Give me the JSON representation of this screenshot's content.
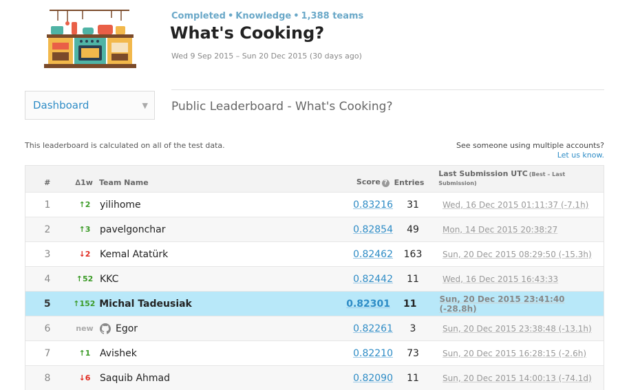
{
  "competition": {
    "status": "Completed",
    "category": "Knowledge",
    "teams": "1,388 teams",
    "title": "What's Cooking?",
    "dates": "Wed 9 Sep 2015 – Sun 20 Dec 2015 (30 days ago)"
  },
  "nav": {
    "dropdown_label": "Dashboard",
    "caret_icon": "caret-down-icon"
  },
  "leaderboard": {
    "title": "Public Leaderboard - What's Cooking?",
    "calc_note": "This leaderboard is calculated on all of the test data.",
    "multi_question": "See someone using multiple accounts?",
    "multi_link": "Let us know.",
    "columns": {
      "rank": "#",
      "delta": "∆1w",
      "team": "Team Name",
      "score": "Score",
      "entries": "Entries",
      "last_submission": "Last Submission UTC",
      "last_submission_note": "(Best – Last Submission)"
    },
    "colors": {
      "up": "#3a9a26",
      "down": "#e0281e",
      "highlight": "#b8e8f9",
      "link": "#2e8cc6"
    },
    "rows": [
      {
        "rank": "1",
        "delta": "↑2",
        "dir": "up",
        "team": "yilihome",
        "score": "0.83216",
        "entries": "31",
        "last": "Wed, 16 Dec 2015 01:11:37 (-7.1h)"
      },
      {
        "rank": "2",
        "delta": "↑3",
        "dir": "up",
        "team": "pavelgonchar",
        "score": "0.82854",
        "entries": "49",
        "last": "Mon, 14 Dec 2015 20:38:27"
      },
      {
        "rank": "3",
        "delta": "↓2",
        "dir": "down",
        "team": "Kemal Atatürk",
        "score": "0.82462",
        "entries": "163",
        "last": "Sun, 20 Dec 2015 08:29:50 (-15.3h)"
      },
      {
        "rank": "4",
        "delta": "↑52",
        "dir": "up",
        "team": "KKC",
        "score": "0.82442",
        "entries": "11",
        "last": "Wed, 16 Dec 2015 16:43:33"
      },
      {
        "rank": "5",
        "delta": "↑152",
        "dir": "up",
        "team": "Michal Tadeusiak",
        "score": "0.82301",
        "entries": "11",
        "last": "Sun, 20 Dec 2015 23:41:40 (-28.8h)"
      },
      {
        "rank": "6",
        "delta": "new",
        "dir": "new",
        "team": "Egor",
        "score": "0.82261",
        "entries": "3",
        "last": "Sun, 20 Dec 2015 23:38:48 (-13.1h)",
        "icon": "github-icon"
      },
      {
        "rank": "7",
        "delta": "↑1",
        "dir": "up",
        "team": "Avishek",
        "score": "0.82210",
        "entries": "73",
        "last": "Sun, 20 Dec 2015 16:28:15 (-2.6h)"
      },
      {
        "rank": "8",
        "delta": "↓6",
        "dir": "down",
        "team": "Saquib Ahmad",
        "score": "0.82090",
        "entries": "11",
        "last": "Sun, 20 Dec 2015 14:00:13 (-74.1d)"
      }
    ]
  }
}
